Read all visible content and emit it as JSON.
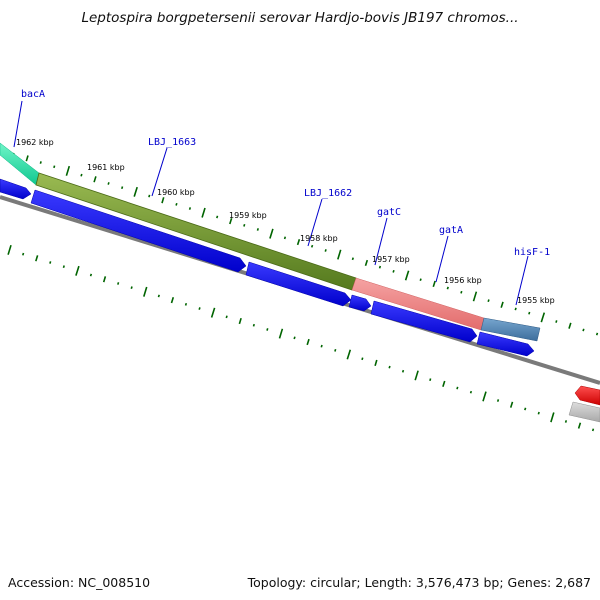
{
  "title": "Leptospira borgpetersenii serovar Hardjo-bovis JB197 chromos...",
  "footer": {
    "accession": "Accession: NC_008510",
    "summary": "Topology: circular; Length: 3,576,473 bp; Genes: 2,687"
  },
  "gene_labels": [
    "bacA",
    "LBJ_1663",
    "LBJ_1662",
    "gatC",
    "gatA",
    "hisF-1"
  ],
  "tick_labels": [
    "1962 kbp",
    "1961 kbp",
    "1960 kbp",
    "1959 kbp",
    "1958 kbp",
    "1957 kbp",
    "1956 kbp",
    "1955 kbp"
  ],
  "colors": {
    "cog_bacA": "#19e6a8",
    "cog_LBJ_1663": "#6b8e23",
    "cog_gatC": "#f08080",
    "cog_hisF": "#4682b4",
    "cds": "#0000ff",
    "cds_other": "#ff0000",
    "backbone": "#808080",
    "ticks": "#006400"
  }
}
